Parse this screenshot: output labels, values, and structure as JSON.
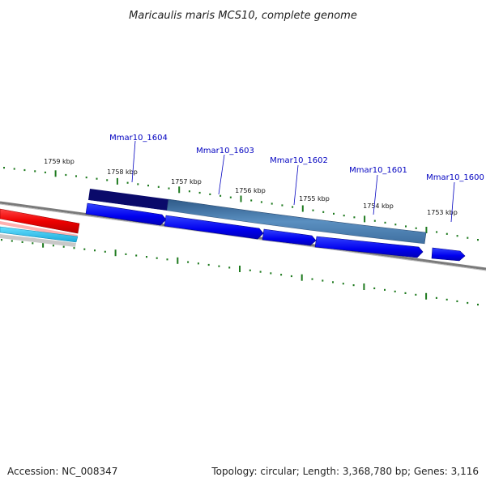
{
  "title": "Maricaulis maris MCS10, complete genome",
  "footer": {
    "accession": "Accession: NC_008347",
    "summary": "Topology: circular; Length: 3,368,780 bp; Genes: 3,116"
  },
  "colors": {
    "gene_forward": "#0000ff",
    "selected_region": "#4a7eb0",
    "selected_region_dark": "#0a0a6a",
    "backbone": "#7a7a7a",
    "ticks": "#1e7a1e",
    "gene_label": "#0000c0",
    "red_track": "#ee0000",
    "cyan_track": "#22bde8"
  },
  "ticks": {
    "labels": [
      "1759 kbp",
      "1758 kbp",
      "1757 kbp",
      "1756 kbp",
      "1755 kbp",
      "1754 kbp",
      "1753 kbp"
    ]
  },
  "genes": [
    {
      "name": "Mmar10_1604"
    },
    {
      "name": "Mmar10_1603"
    },
    {
      "name": "Mmar10_1602"
    },
    {
      "name": "Mmar10_1601"
    },
    {
      "name": "Mmar10_1600"
    }
  ]
}
